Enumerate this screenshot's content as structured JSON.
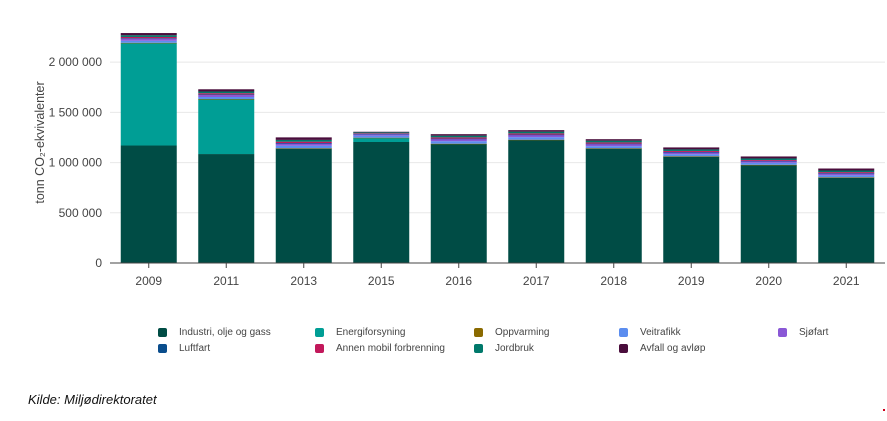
{
  "chart_data": {
    "type": "bar",
    "stacked": true,
    "ylabel": "tonn CO₂-ekvivalenter",
    "ylim": [
      0,
      2400000
    ],
    "yticks": [
      0,
      500000,
      1000000,
      1500000,
      2000000
    ],
    "ytick_labels": [
      "0",
      "500 000",
      "1 000 000",
      "1 500 000",
      "2 000 000"
    ],
    "grid": true,
    "legend_position": "bottom",
    "categories": [
      "2009",
      "2011",
      "2013",
      "2015",
      "2016",
      "2017",
      "2018",
      "2019",
      "2020",
      "2021"
    ],
    "series": [
      {
        "name": "Industri, olje og gass",
        "color": "#004c45",
        "values": [
          1170000,
          1085000,
          1140000,
          1205000,
          1185000,
          1225000,
          1140000,
          1060000,
          975000,
          850000
        ]
      },
      {
        "name": "Energiforsyning",
        "color": "#009e95",
        "values": [
          1020000,
          545000,
          0,
          40000,
          0,
          0,
          0,
          0,
          0,
          0
        ]
      },
      {
        "name": "Oppvarming",
        "color": "#8a6a00",
        "values": [
          3000,
          3000,
          3000,
          3000,
          3000,
          3000,
          3000,
          3000,
          3000,
          3000
        ]
      },
      {
        "name": "Veitrafikk",
        "color": "#5b8def",
        "values": [
          20000,
          20000,
          25000,
          20000,
          25000,
          25000,
          20000,
          20000,
          20000,
          20000
        ]
      },
      {
        "name": "Sjøfart",
        "color": "#8a58d6",
        "values": [
          22000,
          22000,
          23000,
          15000,
          22000,
          22000,
          22000,
          20000,
          18000,
          20000
        ]
      },
      {
        "name": "Luftfart",
        "color": "#0a4d8c",
        "values": [
          4000,
          4000,
          4000,
          4000,
          4000,
          4000,
          4000,
          3000,
          2000,
          2000
        ]
      },
      {
        "name": "Annen mobil forbrenning",
        "color": "#c2185b",
        "values": [
          12000,
          12000,
          13000,
          5000,
          12000,
          12000,
          12000,
          10000,
          8000,
          10000
        ]
      },
      {
        "name": "Jordbruk",
        "color": "#00796b",
        "values": [
          17000,
          17000,
          18000,
          10000,
          17000,
          17000,
          17000,
          15000,
          15000,
          16000
        ]
      },
      {
        "name": "Avfall og avløp",
        "color": "#4a0d3c",
        "values": [
          22000,
          22000,
          25000,
          5000,
          15000,
          15000,
          15000,
          20000,
          20000,
          20000
        ]
      }
    ]
  },
  "legend": {
    "items": [
      {
        "label": "Industri, olje og gass",
        "color": "#004c45"
      },
      {
        "label": "Energiforsyning",
        "color": "#009e95"
      },
      {
        "label": "Oppvarming",
        "color": "#8a6a00"
      },
      {
        "label": "Veitrafikk",
        "color": "#5b8def"
      },
      {
        "label": "Sjøfart",
        "color": "#8a58d6"
      },
      {
        "label": "Luftfart",
        "color": "#0a4d8c"
      },
      {
        "label": "Annen mobil forbrenning",
        "color": "#c2185b"
      },
      {
        "label": "Jordbruk",
        "color": "#00796b"
      },
      {
        "label": "Avfall og avløp",
        "color": "#4a0d3c"
      }
    ]
  },
  "footer": {
    "source": "Kilde: Miljødirektoratet"
  }
}
